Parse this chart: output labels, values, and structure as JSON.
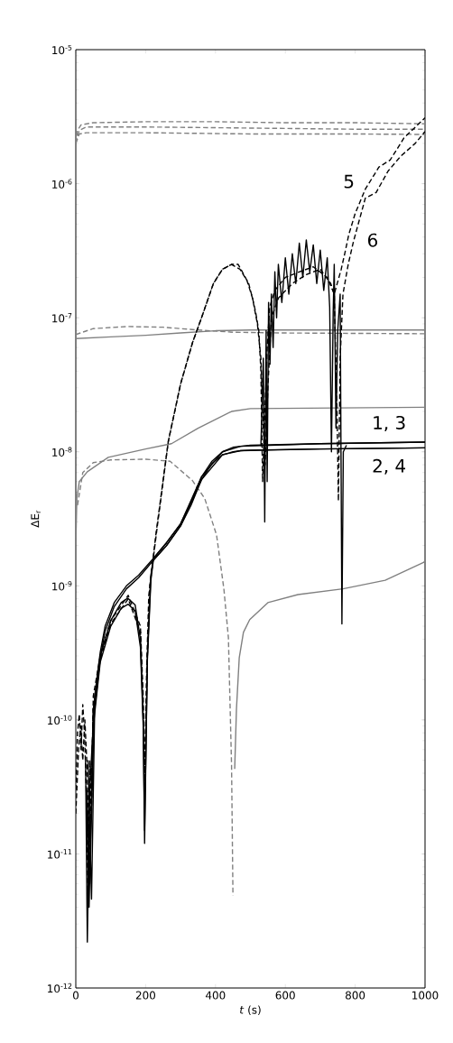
{
  "chart_data": {
    "type": "line",
    "xlabel": "*t* (s)",
    "ylabel": "ΔE$_{r}$",
    "log": true,
    "xlim": [
      0,
      1000
    ],
    "xticks": [
      0,
      200,
      400,
      600,
      800,
      1000
    ],
    "ylim": [
      1e-12,
      1e-05
    ],
    "yticks": [
      {
        "value": 1e-12,
        "label": "10$^{-12}$"
      },
      {
        "value": 1e-11,
        "label": "10$^{-11}$"
      },
      {
        "value": 1e-10,
        "label": "10$^{-10}$"
      },
      {
        "value": 1e-09,
        "label": "10$^{-9}$"
      },
      {
        "value": 1e-08,
        "label": "10$^{-8}$"
      },
      {
        "value": 1e-07,
        "label": "10$^{-7}$"
      },
      {
        "value": 1e-06,
        "label": "10$^{-6}$"
      },
      {
        "value": 1e-05,
        "label": "10$^{-5}$"
      }
    ],
    "annotations": [
      "5",
      "6",
      "1, 3",
      "2, 4"
    ],
    "series": [
      {
        "color": "#808080",
        "line_style": "dashed",
        "x": [
          0,
          5,
          15,
          50,
          200,
          400,
          600,
          800,
          1000
        ],
        "values": [
          2e-06,
          2.5e-06,
          2.75e-06,
          2.85e-06,
          2.9e-06,
          2.9e-06,
          2.85e-06,
          2.85e-06,
          2.8e-06
        ]
      },
      {
        "color": "#808080",
        "line_style": "dashed",
        "x": [
          0,
          10,
          30,
          200,
          500,
          800,
          1000
        ],
        "values": [
          2e-06,
          2.5e-06,
          2.65e-06,
          2.65e-06,
          2.6e-06,
          2.55e-06,
          2.55e-06
        ]
      },
      {
        "color": "#808080",
        "line_style": "dashed",
        "x": [
          0,
          10,
          30,
          200,
          500,
          800,
          1000
        ],
        "values": [
          2e-06,
          2.35e-06,
          2.4e-06,
          2.4e-06,
          2.35e-06,
          2.35e-06,
          2.33e-06
        ]
      },
      {
        "color": "#808080",
        "line_style": "solid",
        "x": [
          0,
          100,
          200,
          300,
          400,
          500,
          700,
          1000
        ],
        "values": [
          7e-08,
          7.2e-08,
          7.4e-08,
          7.7e-08,
          8e-08,
          8.1e-08,
          8.1e-08,
          8.1e-08
        ]
      },
      {
        "color": "#808080",
        "line_style": "dashed",
        "x": [
          0,
          50,
          150,
          250,
          350,
          450,
          600,
          1000
        ],
        "values": [
          7.5e-08,
          8.3e-08,
          8.6e-08,
          8.5e-08,
          8.1e-08,
          7.8e-08,
          7.7e-08,
          7.6e-08
        ]
      },
      {
        "color": "#808080",
        "line_style": "solid",
        "x": [
          0,
          3,
          10,
          33,
          93,
          200,
          274,
          350,
          446,
          500,
          1000
        ],
        "values": [
          2e-09,
          4.5e-09,
          6e-09,
          7.1e-09,
          9.1e-09,
          1.05e-08,
          1.15e-08,
          1.5e-08,
          2e-08,
          2.1e-08,
          2.15e-08
        ]
      },
      {
        "color": "#808080",
        "line_style": "dashed",
        "x": [
          5,
          20,
          50,
          100,
          200,
          270,
          334,
          369,
          403,
          424,
          437,
          446,
          450
        ],
        "values": [
          4e-09,
          7e-09,
          8.3e-09,
          8.7e-09,
          8.8e-09,
          8.5e-09,
          6.1e-09,
          4.5e-09,
          2.4e-09,
          9.5e-10,
          4.1e-10,
          4.6e-11,
          4.9e-12
        ]
      },
      {
        "color": "#808080",
        "line_style": "solid",
        "x": [
          455,
          460,
          468,
          480,
          498,
          550,
          636,
          765,
          886,
          997,
          1000
        ],
        "values": [
          4.3e-11,
          1.2e-10,
          2.9e-10,
          4.5e-10,
          5.6e-10,
          7.5e-10,
          8.6e-10,
          9.5e-10,
          1.1e-09,
          1.5e-09,
          1.55e-09
        ]
      },
      {
        "color": "#000000",
        "line_style": "solid",
        "x": [
          28,
          33,
          40,
          54,
          70,
          84,
          110,
          145,
          180,
          222,
          260,
          300,
          330,
          360,
          390,
          420,
          450,
          472,
          500,
          700,
          1000
        ],
        "values": [
          5e-11,
          2.2e-12,
          3e-11,
          1.5e-10,
          3.2e-10,
          5e-10,
          7.5e-10,
          1e-09,
          1.2e-09,
          1.6e-09,
          2.1e-09,
          2.9e-09,
          4.2e-09,
          6.5e-09,
          8.5e-09,
          1e-08,
          1.08e-08,
          1.1e-08,
          1.12e-08,
          1.15e-08,
          1.18e-08
        ]
      },
      {
        "color": "#000000",
        "line_style": "solid",
        "x": [
          35,
          45,
          54,
          70,
          84,
          110,
          145,
          180,
          222,
          260,
          300,
          330,
          360,
          390,
          420,
          450,
          472,
          500,
          700,
          1000
        ],
        "values": [
          5e-11,
          4.6e-12,
          1.2e-10,
          2.9e-10,
          4.6e-10,
          7e-10,
          9.5e-10,
          1.15e-09,
          1.55e-09,
          2e-09,
          2.8e-09,
          4e-09,
          6.2e-09,
          8.2e-09,
          9.5e-09,
          1e-08,
          1.02e-08,
          1.03e-08,
          1.05e-08,
          1.07e-08
        ]
      },
      {
        "color": "#000000",
        "line_style": "solid",
        "x": [
          30,
          38,
          50,
          70,
          100,
          130,
          149,
          170,
          185,
          193,
          197,
          205,
          215,
          222,
          260,
          300,
          360,
          420,
          472,
          700,
          1000
        ],
        "values": [
          3e-11,
          4e-12,
          1.2e-10,
          3e-10,
          5.5e-10,
          7.5e-10,
          8.1e-10,
          7.2e-10,
          4e-10,
          1e-10,
          1.2e-11,
          3e-10,
          1.2e-09,
          1.6e-09,
          2.1e-09,
          2.9e-09,
          6.5e-09,
          1e-08,
          1.1e-08,
          1.15e-08,
          1.18e-08
        ]
      },
      {
        "color": "#000000",
        "line_style": "solid",
        "x": [
          32,
          40,
          52,
          70,
          100,
          130,
          150,
          170,
          185,
          193,
          197,
          205,
          215,
          222,
          260,
          300,
          360,
          420,
          472,
          700,
          1000
        ],
        "values": [
          3e-11,
          6e-12,
          1e-10,
          2.7e-10,
          5e-10,
          6.8e-10,
          7.3e-10,
          6.5e-10,
          3.5e-10,
          9e-11,
          1.5e-11,
          2.8e-10,
          1.1e-09,
          1.55e-09,
          2e-09,
          2.8e-09,
          6.2e-09,
          9.5e-09,
          1.02e-08,
          1.05e-08,
          1.07e-08
        ]
      },
      {
        "color": "#000000",
        "line_style": "solid",
        "x": [
          530,
          537,
          541,
          545,
          548,
          552,
          556,
          560,
          565,
          570,
          575,
          580,
          590,
          600,
          610,
          620,
          630,
          640,
          650,
          660,
          670,
          680,
          690,
          700,
          710,
          720,
          727,
          732,
          737,
          740,
          745,
          750,
          757,
          762,
          766,
          775
        ],
        "values": [
          1.1e-08,
          5e-08,
          3e-09,
          8e-08,
          6e-09,
          1.3e-07,
          4.5e-08,
          1.5e-07,
          6e-08,
          2.2e-07,
          1e-07,
          2.5e-07,
          1.3e-07,
          2.8e-07,
          1.5e-07,
          3e-07,
          1.8e-07,
          3.6e-07,
          2e-07,
          3.8e-07,
          2.2e-07,
          3.5e-07,
          1.8e-07,
          3.2e-07,
          1.6e-07,
          2.8e-07,
          1.2e-07,
          1e-08,
          1.1e-07,
          2.5e-07,
          1.5e-08,
          8e-08,
          1.5e-07,
          5.2e-10,
          1e-08,
          1.12e-08
        ]
      },
      {
        "color": "#000000",
        "line_style": "dashed",
        "x": [
          0,
          5,
          10,
          15,
          20,
          25,
          30,
          35,
          40,
          45,
          50,
          70,
          100,
          150,
          185,
          193,
          197,
          203,
          209,
          230,
          265,
          300,
          334,
          360,
          394,
          420,
          446,
          465,
          481,
          495,
          506,
          515,
          524,
          530,
          535,
          540,
          548,
          555,
          570,
          600,
          640,
          680,
          720,
          740,
          760,
          770,
          782,
          800,
          829,
          868,
          900,
          940,
          1000
        ],
        "values": [
          3e-11,
          8e-11,
          1.1e-10,
          6e-11,
          1.3e-10,
          8e-11,
          3e-11,
          4e-12,
          5e-11,
          2e-11,
          1.5e-10,
          3e-10,
          5.5e-10,
          8.5e-10,
          5e-10,
          1.5e-10,
          3.5e-11,
          2.5e-10,
          8.5e-10,
          2.5e-09,
          1.2e-08,
          3.2e-08,
          6.5e-08,
          1e-07,
          1.8e-07,
          2.3e-07,
          2.5e-07,
          2.5e-07,
          2.1e-07,
          1.8e-07,
          1.4e-07,
          1.1e-07,
          8e-08,
          4e-08,
          6e-09,
          1.5e-08,
          6e-08,
          1.2e-07,
          1.6e-07,
          2e-07,
          2.2e-07,
          2.4e-07,
          2e-07,
          1.5e-07,
          2.3e-07,
          3e-07,
          4.2e-07,
          6e-07,
          9.1e-07,
          1.33e-06,
          1.5e-06,
          2.2e-06,
          3.1e-06
        ]
      },
      {
        "color": "#000000",
        "line_style": "dashed",
        "x": [
          0,
          8,
          14,
          20,
          26,
          33,
          38,
          44,
          50,
          70,
          100,
          150,
          185,
          193,
          198,
          205,
          212,
          235,
          265,
          300,
          334,
          360,
          394,
          420,
          446,
          470,
          490,
          506,
          520,
          530,
          537,
          542,
          550,
          560,
          580,
          620,
          660,
          700,
          730,
          740,
          748,
          752,
          757,
          765,
          780,
          795,
          829,
          860,
          894,
          930,
          972,
          1000
        ],
        "values": [
          2e-11,
          6e-11,
          9e-11,
          5e-11,
          1e-10,
          4e-11,
          6e-12,
          3e-11,
          1.2e-10,
          2.8e-10,
          5.2e-10,
          8e-10,
          4.5e-10,
          1.2e-10,
          4e-11,
          3e-10,
          1e-09,
          3e-09,
          1.2e-08,
          3.2e-08,
          6.5e-08,
          1e-07,
          1.8e-07,
          2.3e-07,
          2.5e-07,
          2.3e-07,
          1.9e-07,
          1.4e-07,
          9e-08,
          5e-08,
          1.5e-08,
          8e-09,
          3e-08,
          1e-07,
          1.4e-07,
          1.8e-07,
          2.1e-07,
          2.3e-07,
          1.8e-07,
          1.5e-07,
          2e-08,
          4.3e-09,
          5e-08,
          1.5e-07,
          2.5e-07,
          3.7e-07,
          7.8e-07,
          8.6e-07,
          1.24e-06,
          1.6e-06,
          2e-06,
          2.45e-06
        ]
      }
    ]
  }
}
